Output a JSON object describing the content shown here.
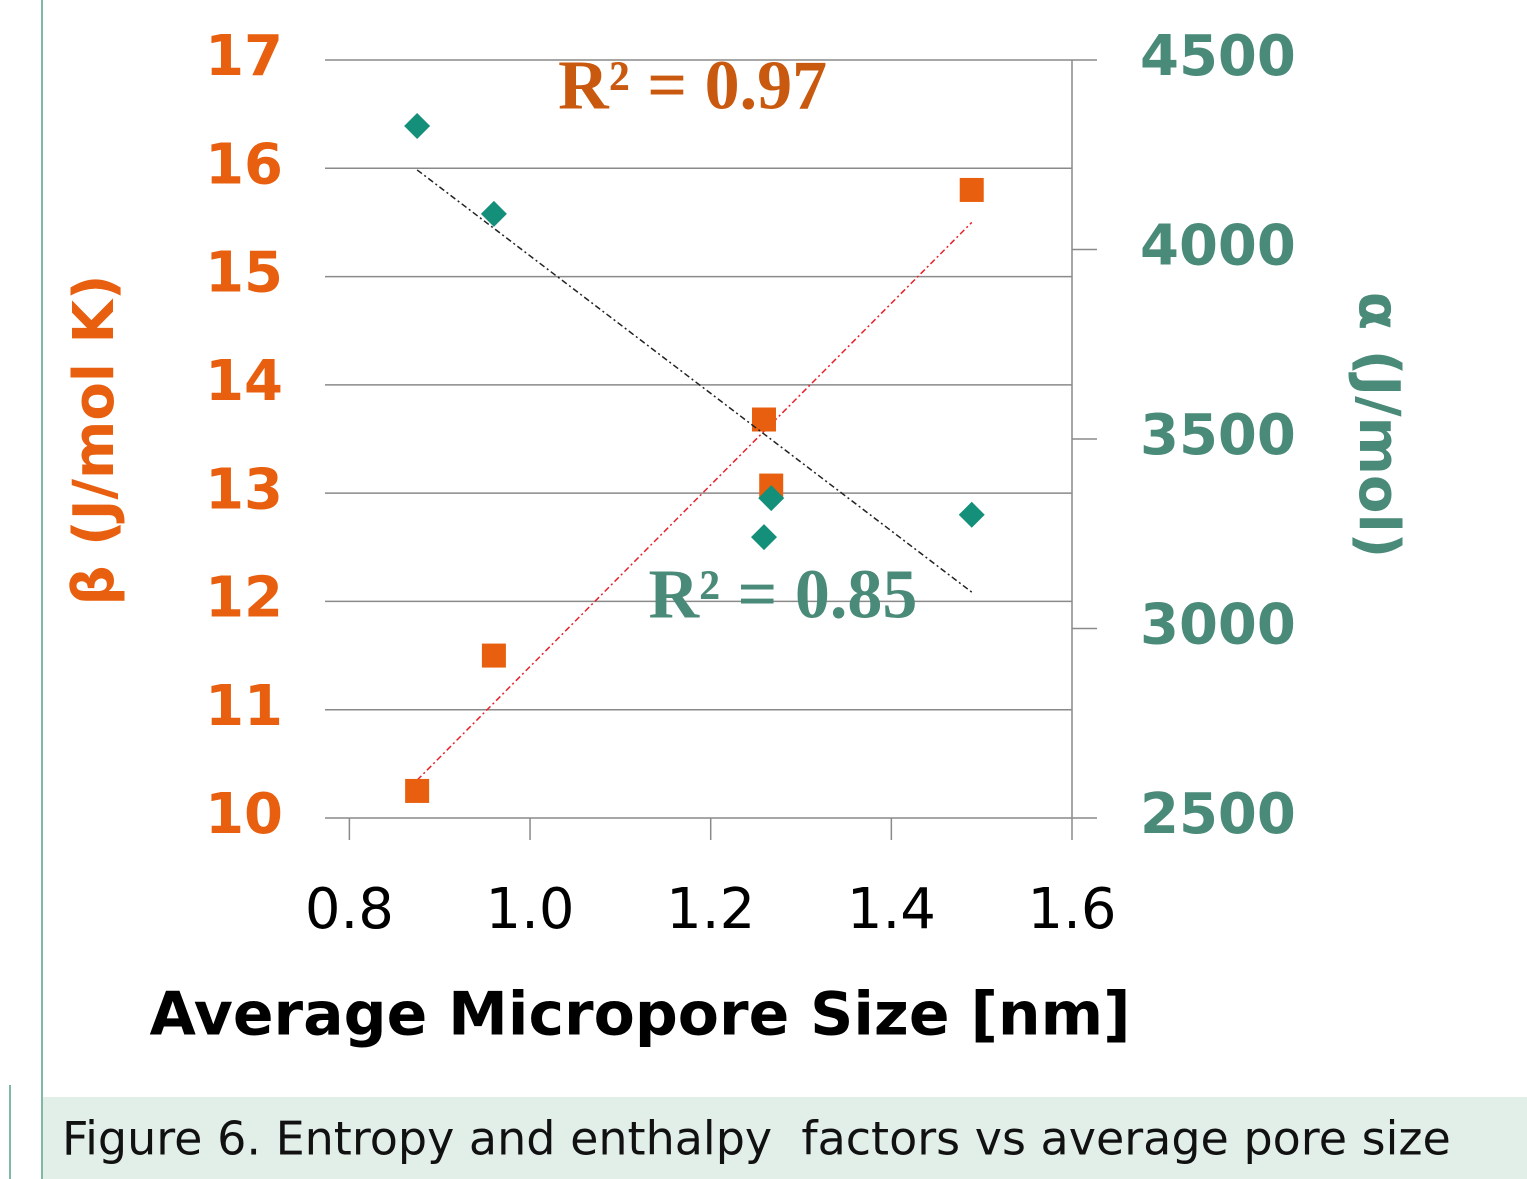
{
  "chart_data": {
    "type": "scatter",
    "xlabel": "Average Micropore Size [nm]",
    "ylabel": "β (J/mol K)",
    "y2label": "α (J/mol)",
    "x": [
      0.875,
      0.96,
      1.259,
      1.267,
      1.489
    ],
    "series": [
      {
        "type": "scatter",
        "axis": "y",
        "marker": "square",
        "color": "#e8600f",
        "values": [
          10.25,
          11.5,
          13.68,
          13.07,
          15.8
        ],
        "trend": {
          "color": "#e8202a",
          "x": [
            0.875,
            1.489
          ],
          "values": [
            10.35,
            15.5
          ]
        }
      },
      {
        "type": "scatter",
        "axis": "y2",
        "marker": "diamond",
        "color": "#14907a",
        "values": [
          4326,
          4094,
          3241,
          3344,
          3300
        ],
        "trend": {
          "color": "#222222",
          "x": [
            0.875,
            1.489
          ],
          "values": [
            4210,
            3096
          ]
        }
      }
    ],
    "annotations": [
      {
        "text": "R² = 0.97",
        "x": 1.18,
        "y": 16.7,
        "axis": "y",
        "color": "#c8590f"
      },
      {
        "text": "R² = 0.85",
        "x": 1.28,
        "y": 12.0,
        "axis": "y",
        "color": "#4a8a78"
      }
    ],
    "xlim": [
      0.773,
      1.6
    ],
    "xticks": [
      0.8,
      {
        "value": 1,
        "label": "1.0"
      },
      1.2,
      1.4,
      1.6
    ],
    "ylim": [
      10,
      17
    ],
    "yticks": [
      10,
      11,
      12,
      13,
      14,
      15,
      16,
      17
    ],
    "y2lim": [
      2500,
      4500
    ],
    "y2ticks": [
      2500,
      3000,
      3500,
      4000,
      4500
    ],
    "grid": true,
    "ycolor": "#e8600f",
    "y2color": "#4a8a78"
  },
  "caption": "Figure 6. Entropy and enthalpy  factors vs average pore size"
}
